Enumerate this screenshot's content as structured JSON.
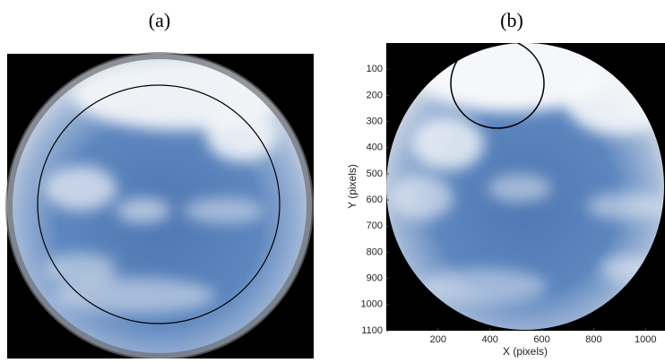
{
  "panels": [
    {
      "label": "(a)"
    },
    {
      "label": "(b)",
      "xlabel": "X (pixels)",
      "ylabel": "Y (pixels)",
      "xlim": [
        0,
        1075
      ],
      "ylim": [
        0,
        1100
      ],
      "xticks": [
        200,
        400,
        600,
        800,
        1000
      ],
      "yticks": [
        100,
        200,
        300,
        400,
        500,
        600,
        700,
        800,
        900,
        1000,
        1100
      ]
    }
  ]
}
